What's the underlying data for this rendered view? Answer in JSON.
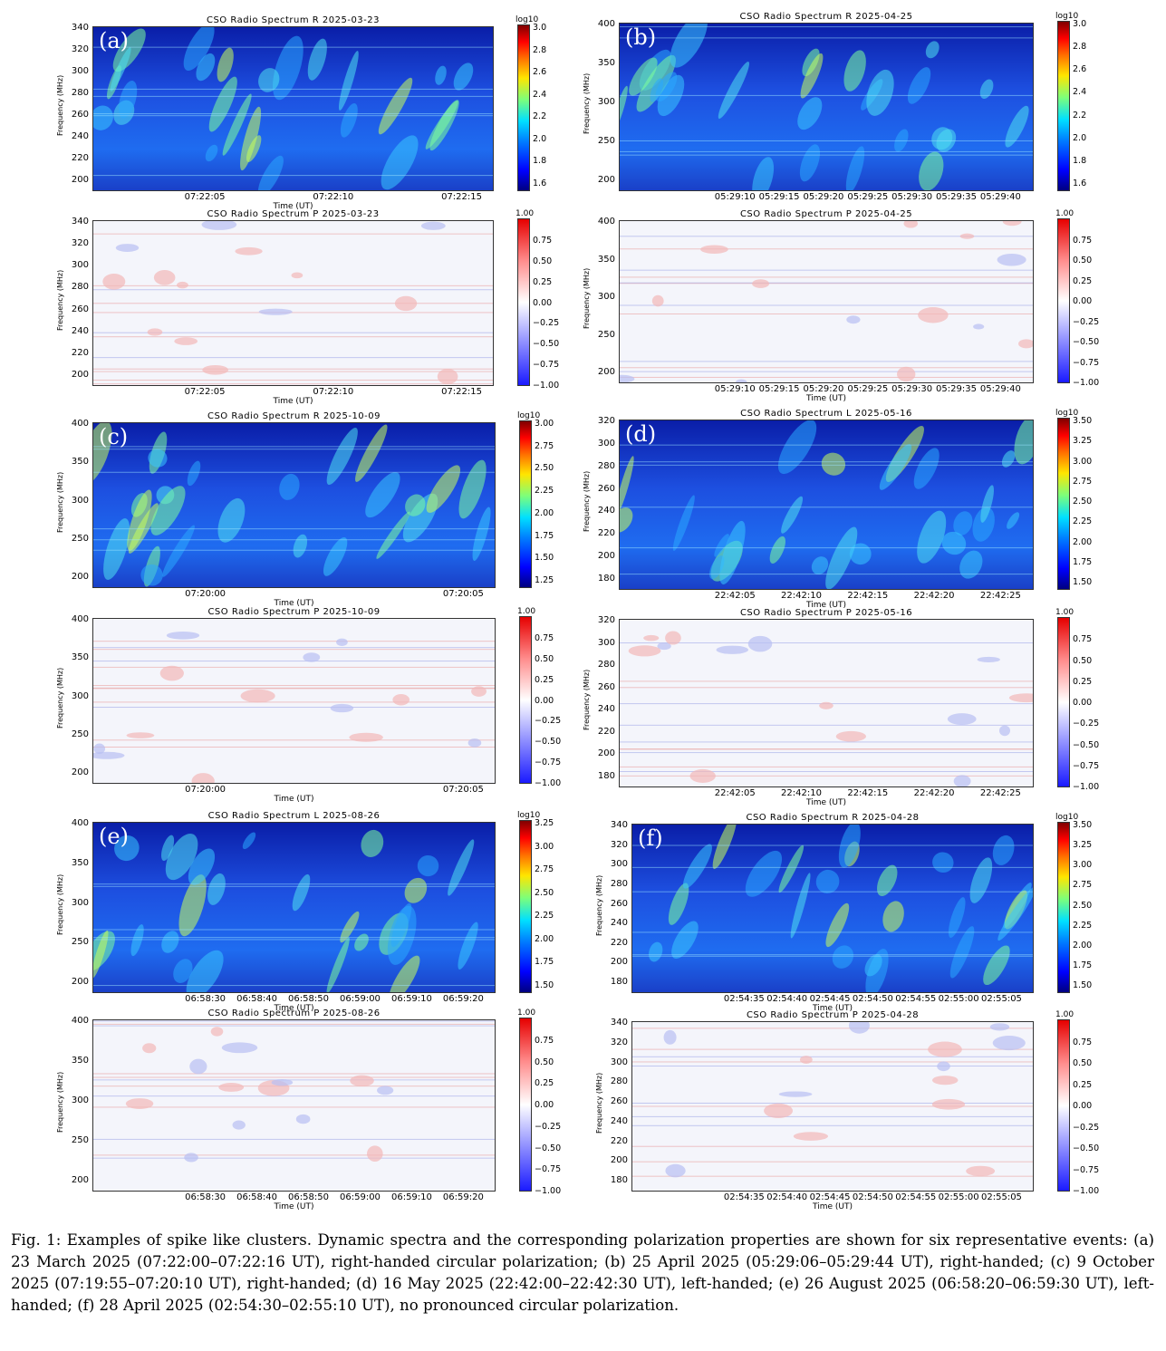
{
  "figure": {
    "panels": [
      {
        "letter": "(a)",
        "intensity": {
          "title": "CSO Radio Spectrum R 2025-03-23",
          "ylabel": "Frequency (MHz)",
          "xlabel": "Time (UT)",
          "yticks": [
            "340",
            "320",
            "300",
            "280",
            "260",
            "240",
            "220",
            "200"
          ],
          "xticks": [
            "07:22:05",
            "07:22:10",
            "07:22:15"
          ],
          "cbar_title": "log10",
          "cbar_ticks": [
            "3.0",
            "2.8",
            "2.6",
            "2.4",
            "2.2",
            "2.0",
            "1.8",
            "1.6"
          ]
        },
        "polarization": {
          "title": "CSO Radio Spectrum P 2025-03-23",
          "ylabel": "Frequency (MHz)",
          "xlabel": "Time (UT)",
          "yticks": [
            "340",
            "320",
            "300",
            "280",
            "260",
            "240",
            "220",
            "200"
          ],
          "xticks": [
            "07:22:05",
            "07:22:10",
            "07:22:15"
          ],
          "cbar_title": "1.00",
          "cbar_ticks": [
            "0.75",
            "0.50",
            "0.25",
            "0.00",
            "−0.25",
            "−0.50",
            "−0.75",
            "−1.00"
          ]
        }
      },
      {
        "letter": "(b)",
        "intensity": {
          "title": "CSO Radio Spectrum R 2025-04-25",
          "ylabel": "Frequency (MHz)",
          "xlabel": "",
          "yticks": [
            "400",
            "350",
            "300",
            "250",
            "200"
          ],
          "xticks": [
            "05:29:10",
            "05:29:15",
            "05:29:20",
            "05:29:25",
            "05:29:30",
            "05:29:35",
            "05:29:40"
          ],
          "cbar_title": "log10",
          "cbar_ticks": [
            "3.0",
            "2.8",
            "2.6",
            "2.4",
            "2.2",
            "2.0",
            "1.8",
            "1.6"
          ]
        },
        "polarization": {
          "title": "CSO Radio Spectrum P 2025-04-25",
          "ylabel": "Frequency (MHz)",
          "xlabel": "Time (UT)",
          "yticks": [
            "400",
            "350",
            "300",
            "250",
            "200"
          ],
          "xticks": [
            "05:29:10",
            "05:29:15",
            "05:29:20",
            "05:29:25",
            "05:29:30",
            "05:29:35",
            "05:29:40"
          ],
          "cbar_title": "1.00",
          "cbar_ticks": [
            "0.75",
            "0.50",
            "0.25",
            "0.00",
            "−0.25",
            "−0.50",
            "−0.75",
            "−1.00"
          ]
        }
      },
      {
        "letter": "(c)",
        "intensity": {
          "title": "CSO Radio Spectrum R 2025-10-09",
          "ylabel": "Frequency (MHz)",
          "xlabel": "Time (UT)",
          "yticks": [
            "400",
            "350",
            "300",
            "250",
            "200"
          ],
          "xticks": [
            "07:20:00",
            "07:20:05"
          ],
          "cbar_title": "log10",
          "cbar_ticks": [
            "3.00",
            "2.75",
            "2.50",
            "2.25",
            "2.00",
            "1.75",
            "1.50",
            "1.25"
          ]
        },
        "polarization": {
          "title": "CSO Radio Spectrum P 2025-10-09",
          "ylabel": "Frequency (MHz)",
          "xlabel": "Time (UT)",
          "yticks": [
            "400",
            "350",
            "300",
            "250",
            "200"
          ],
          "xticks": [
            "07:20:00",
            "07:20:05"
          ],
          "cbar_title": "1.00",
          "cbar_ticks": [
            "0.75",
            "0.50",
            "0.25",
            "0.00",
            "−0.25",
            "−0.50",
            "−0.75",
            "−1.00"
          ]
        }
      },
      {
        "letter": "(d)",
        "intensity": {
          "title": "CSO Radio Spectrum L 2025-05-16",
          "ylabel": "Frequency (MHz)",
          "xlabel": "Time (UT)",
          "yticks": [
            "320",
            "300",
            "280",
            "260",
            "240",
            "220",
            "200",
            "180"
          ],
          "xticks": [
            "22:42:05",
            "22:42:10",
            "22:42:15",
            "22:42:20",
            "22:42:25"
          ],
          "cbar_title": "log10",
          "cbar_ticks": [
            "3.50",
            "3.25",
            "3.00",
            "2.75",
            "2.50",
            "2.25",
            "2.00",
            "1.75",
            "1.50"
          ]
        },
        "polarization": {
          "title": "CSO Radio Spectrum P 2025-05-16",
          "ylabel": "Frequency (MHz)",
          "xlabel": "Time (UT)",
          "yticks": [
            "320",
            "300",
            "280",
            "260",
            "240",
            "220",
            "200",
            "180"
          ],
          "xticks": [
            "22:42:05",
            "22:42:10",
            "22:42:15",
            "22:42:20",
            "22:42:25"
          ],
          "cbar_title": "1.00",
          "cbar_ticks": [
            "0.75",
            "0.50",
            "0.25",
            "0.00",
            "−0.25",
            "−0.50",
            "−0.75",
            "−1.00"
          ]
        }
      },
      {
        "letter": "(e)",
        "intensity": {
          "title": "CSO Radio Spectrum L 2025-08-26",
          "ylabel": "Frequency (MHz)",
          "xlabel": "Time (UT)",
          "yticks": [
            "400",
            "350",
            "300",
            "250",
            "200"
          ],
          "xticks": [
            "06:58:30",
            "06:58:40",
            "06:58:50",
            "06:59:00",
            "06:59:10",
            "06:59:20"
          ],
          "cbar_title": "log10",
          "cbar_ticks": [
            "3.25",
            "3.00",
            "2.75",
            "2.50",
            "2.25",
            "2.00",
            "1.75",
            "1.50"
          ]
        },
        "polarization": {
          "title": "CSO Radio Spectrum P 2025-08-26",
          "ylabel": "Frequency (MHz)",
          "xlabel": "Time (UT)",
          "yticks": [
            "400",
            "350",
            "300",
            "250",
            "200"
          ],
          "xticks": [
            "06:58:30",
            "06:58:40",
            "06:58:50",
            "06:59:00",
            "06:59:10",
            "06:59:20"
          ],
          "cbar_title": "1.00",
          "cbar_ticks": [
            "0.75",
            "0.50",
            "0.25",
            "0.00",
            "−0.25",
            "−0.50",
            "−0.75",
            "−1.00"
          ]
        }
      },
      {
        "letter": "(f)",
        "intensity": {
          "title": "CSO Radio Spectrum R 2025-04-28",
          "ylabel": "Frequency (MHz)",
          "xlabel": "Time (UT)",
          "yticks": [
            "340",
            "320",
            "300",
            "280",
            "260",
            "240",
            "220",
            "200",
            "180"
          ],
          "xticks": [
            "02:54:35",
            "02:54:40",
            "02:54:45",
            "02:54:50",
            "02:54:55",
            "02:55:00",
            "02:55:05"
          ],
          "cbar_title": "log10",
          "cbar_ticks": [
            "3.50",
            "3.25",
            "3.00",
            "2.75",
            "2.50",
            "2.25",
            "2.00",
            "1.75",
            "1.50"
          ]
        },
        "polarization": {
          "title": "CSO Radio Spectrum P 2025-04-28",
          "ylabel": "Frequency (MHz)",
          "xlabel": "Time (UT)",
          "yticks": [
            "340",
            "320",
            "300",
            "280",
            "260",
            "240",
            "220",
            "200",
            "180"
          ],
          "xticks": [
            "02:54:35",
            "02:54:40",
            "02:54:45",
            "02:54:50",
            "02:54:55",
            "02:55:00",
            "02:55:05"
          ],
          "cbar_title": "1.00",
          "cbar_ticks": [
            "0.75",
            "0.50",
            "0.25",
            "0.00",
            "−0.25",
            "−0.50",
            "−0.75",
            "−1.00"
          ]
        }
      }
    ],
    "caption": "Fig. 1: Examples of spike like clusters. Dynamic spectra and the corresponding polarization properties are shown for six representative events: (a) 23 March 2025 (07:22:00–07:22:16 UT), right-handed circular polarization; (b) 25 April 2025 (05:29:06–05:29:44 UT), right-handed; (c) 9 October 2025 (07:19:55–07:20:10 UT), right-handed; (d) 16 May 2025 (22:42:00–22:42:30 UT), left-handed; (e) 26 August 2025 (06:58:20–06:59:30 UT), left-handed; (f) 28 April 2025 (02:54:30–02:55:10 UT), no pronounced circular polarization."
  }
}
